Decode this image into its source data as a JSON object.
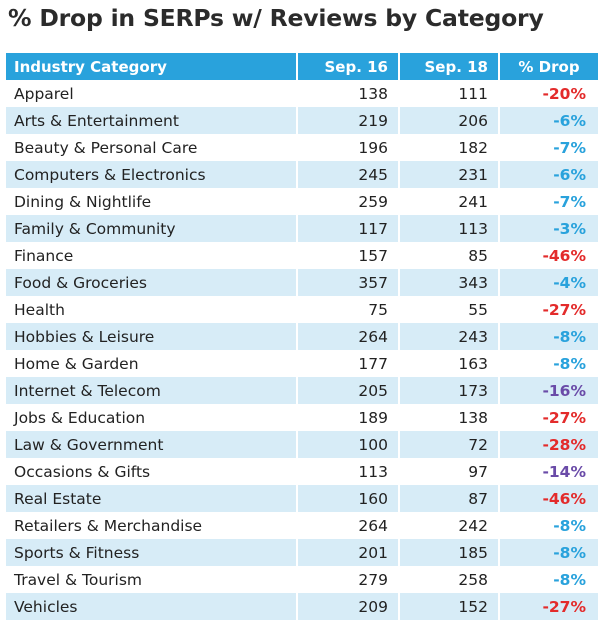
{
  "chart_data": {
    "type": "table",
    "title": "% Drop in SERPs w/ Reviews by Category",
    "columns": [
      "Industry Category",
      "Sep. 16",
      "Sep. 18",
      "% Drop"
    ],
    "colors": {
      "header_bg": "#29a2dc",
      "stripe_bg": "#d7ecf7",
      "drop_low": "#29a2dc",
      "drop_mid": "#6a4ba8",
      "drop_high": "#e32b2b"
    },
    "rows": [
      {
        "category": "Apparel",
        "sep16": 138,
        "sep18": 111,
        "drop": "-20%",
        "drop_value": 20
      },
      {
        "category": "Arts & Entertainment",
        "sep16": 219,
        "sep18": 206,
        "drop": "-6%",
        "drop_value": 6
      },
      {
        "category": "Beauty & Personal Care",
        "sep16": 196,
        "sep18": 182,
        "drop": "-7%",
        "drop_value": 7
      },
      {
        "category": "Computers & Electronics",
        "sep16": 245,
        "sep18": 231,
        "drop": "-6%",
        "drop_value": 6
      },
      {
        "category": "Dining & Nightlife",
        "sep16": 259,
        "sep18": 241,
        "drop": "-7%",
        "drop_value": 7
      },
      {
        "category": "Family & Community",
        "sep16": 117,
        "sep18": 113,
        "drop": "-3%",
        "drop_value": 3
      },
      {
        "category": "Finance",
        "sep16": 157,
        "sep18": 85,
        "drop": "-46%",
        "drop_value": 46
      },
      {
        "category": "Food & Groceries",
        "sep16": 357,
        "sep18": 343,
        "drop": "-4%",
        "drop_value": 4
      },
      {
        "category": "Health",
        "sep16": 75,
        "sep18": 55,
        "drop": "-27%",
        "drop_value": 27
      },
      {
        "category": "Hobbies & Leisure",
        "sep16": 264,
        "sep18": 243,
        "drop": "-8%",
        "drop_value": 8
      },
      {
        "category": "Home & Garden",
        "sep16": 177,
        "sep18": 163,
        "drop": "-8%",
        "drop_value": 8
      },
      {
        "category": "Internet & Telecom",
        "sep16": 205,
        "sep18": 173,
        "drop": "-16%",
        "drop_value": 16
      },
      {
        "category": "Jobs & Education",
        "sep16": 189,
        "sep18": 138,
        "drop": "-27%",
        "drop_value": 27
      },
      {
        "category": "Law & Government",
        "sep16": 100,
        "sep18": 72,
        "drop": "-28%",
        "drop_value": 28
      },
      {
        "category": "Occasions & Gifts",
        "sep16": 113,
        "sep18": 97,
        "drop": "-14%",
        "drop_value": 14
      },
      {
        "category": "Real Estate",
        "sep16": 160,
        "sep18": 87,
        "drop": "-46%",
        "drop_value": 46
      },
      {
        "category": "Retailers & Merchandise",
        "sep16": 264,
        "sep18": 242,
        "drop": "-8%",
        "drop_value": 8
      },
      {
        "category": "Sports & Fitness",
        "sep16": 201,
        "sep18": 185,
        "drop": "-8%",
        "drop_value": 8
      },
      {
        "category": "Travel & Tourism",
        "sep16": 279,
        "sep18": 258,
        "drop": "-8%",
        "drop_value": 8
      },
      {
        "category": "Vehicles",
        "sep16": 209,
        "sep18": 152,
        "drop": "-27%",
        "drop_value": 27
      }
    ]
  }
}
